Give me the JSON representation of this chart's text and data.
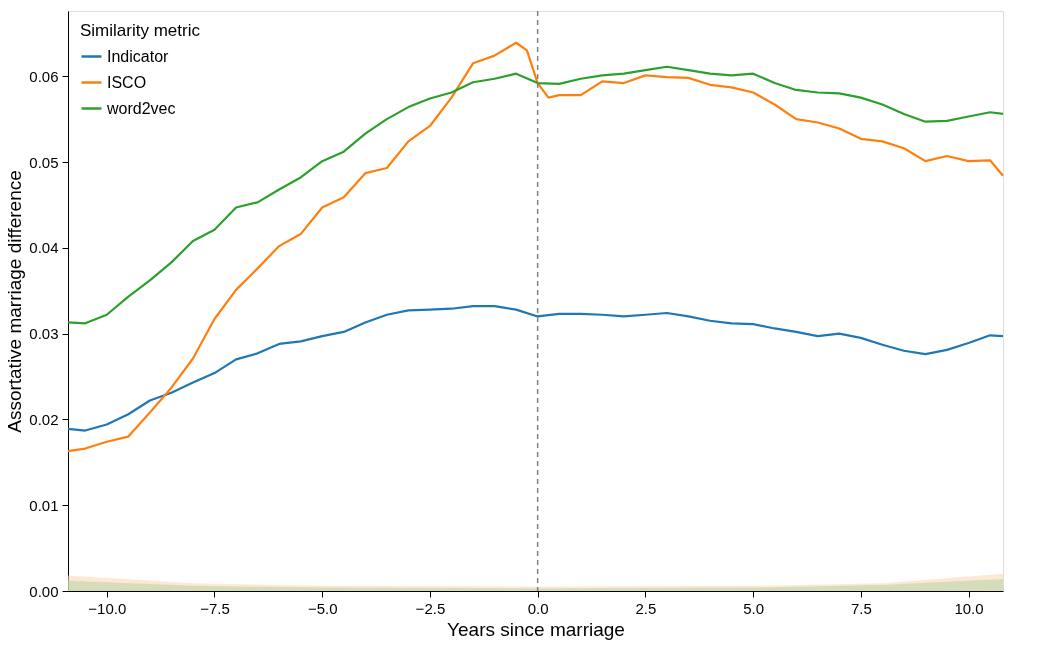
{
  "chart_data": {
    "type": "line",
    "xlabel": "Years since marriage",
    "ylabel": "Assortative marriage difference",
    "legend_title": "Similarity metric",
    "legend": "top left",
    "grid": false,
    "line_style": "solid",
    "marker": "none",
    "xlim": [
      -10.9,
      10.8
    ],
    "ylim": [
      0,
      0.0676
    ],
    "xticks": [
      {
        "value": -10,
        "label": "−10.0"
      },
      {
        "value": -7.5,
        "label": "−7.5"
      },
      {
        "value": -5,
        "label": "−5.0"
      },
      {
        "value": -2.5,
        "label": "−2.5"
      },
      {
        "value": 0,
        "label": "0.0"
      },
      {
        "value": 2.5,
        "label": "2.5"
      },
      {
        "value": 5,
        "label": "5.0"
      },
      {
        "value": 7.5,
        "label": "7.5"
      },
      {
        "value": 10,
        "label": "10.0"
      }
    ],
    "yticks": [
      {
        "value": 0,
        "label": "0.00"
      },
      {
        "value": 0.01,
        "label": "0.01"
      },
      {
        "value": 0.02,
        "label": "0.02"
      },
      {
        "value": 0.03,
        "label": "0.03"
      },
      {
        "value": 0.04,
        "label": "0.04"
      },
      {
        "value": 0.05,
        "label": "0.05"
      },
      {
        "value": 0.06,
        "label": "0.06"
      }
    ],
    "ref_lines": [
      {
        "axis": "x",
        "value": 0,
        "color": "#808080",
        "line_style": "dashed"
      }
    ],
    "series": [
      {
        "type": "area",
        "color": "#fdd9b5",
        "x": [
          -10.9,
          -8,
          -5,
          0,
          5,
          8,
          10.8
        ],
        "values": [
          0.0018,
          0.0009,
          0.0006,
          0.0005,
          0.0006,
          0.0009,
          0.002
        ]
      },
      {
        "type": "area",
        "color": "#b9d4a8",
        "x": [
          -10.9,
          -8,
          -5,
          0,
          5,
          8,
          10.8
        ],
        "values": [
          0.0012,
          0.0006,
          0.0004,
          0.0003,
          0.0004,
          0.0007,
          0.0014
        ]
      },
      {
        "name": "Indicator",
        "color": "#1f77b4",
        "x": [
          -10.9,
          -10.5,
          -10,
          -9.5,
          -9,
          -8.5,
          -8,
          -7.5,
          -7,
          -6.5,
          -6,
          -5.5,
          -5,
          -4.5,
          -4,
          -3.5,
          -3,
          -2.5,
          -2,
          -1.5,
          -1,
          -0.5,
          0,
          0.5,
          1,
          1.5,
          2,
          2.5,
          3,
          3.5,
          4,
          4.5,
          5,
          5.5,
          6,
          6.5,
          7,
          7.5,
          8,
          8.5,
          9,
          9.5,
          10,
          10.5,
          10.8
        ],
        "values": [
          0.0189,
          0.0187,
          0.0194,
          0.0206,
          0.0222,
          0.0231,
          0.0243,
          0.0254,
          0.027,
          0.0277,
          0.0288,
          0.0291,
          0.0297,
          0.0302,
          0.0313,
          0.0322,
          0.0327,
          0.0328,
          0.0329,
          0.0332,
          0.0332,
          0.0328,
          0.032,
          0.0323,
          0.0323,
          0.0322,
          0.032,
          0.0322,
          0.0324,
          0.032,
          0.0315,
          0.0312,
          0.0311,
          0.0306,
          0.0302,
          0.0297,
          0.03,
          0.0295,
          0.0287,
          0.028,
          0.0276,
          0.0281,
          0.0289,
          0.0298,
          0.0297
        ]
      },
      {
        "name": "ISCO",
        "color": "#ff7f0e",
        "x": [
          -10.9,
          -10.5,
          -10,
          -9.5,
          -9,
          -8.5,
          -8,
          -7.5,
          -7,
          -6.5,
          -6,
          -5.5,
          -5,
          -4.5,
          -4,
          -3.5,
          -3,
          -2.5,
          -2,
          -1.5,
          -1,
          -0.5,
          -0.25,
          0,
          0.25,
          0.5,
          1,
          1.5,
          2,
          2.5,
          3,
          3.5,
          4,
          4.5,
          5,
          5.5,
          6,
          6.5,
          7,
          7.5,
          8,
          8.5,
          9,
          9.5,
          10,
          10.5,
          10.8
        ],
        "values": [
          0.0163,
          0.0166,
          0.0174,
          0.018,
          0.0208,
          0.0237,
          0.0271,
          0.0317,
          0.0351,
          0.0376,
          0.0402,
          0.0416,
          0.0447,
          0.0459,
          0.0487,
          0.0493,
          0.0524,
          0.0542,
          0.0575,
          0.0615,
          0.0624,
          0.0639,
          0.063,
          0.0592,
          0.0575,
          0.0578,
          0.0578,
          0.0594,
          0.0592,
          0.0601,
          0.0599,
          0.0598,
          0.059,
          0.0587,
          0.0581,
          0.0567,
          0.055,
          0.0546,
          0.0539,
          0.0527,
          0.0524,
          0.0516,
          0.0501,
          0.0507,
          0.0501,
          0.0502,
          0.0484
        ]
      },
      {
        "name": "word2vec",
        "color": "#2ca02c",
        "x": [
          -10.9,
          -10.5,
          -10,
          -9.5,
          -9,
          -8.5,
          -8,
          -7.5,
          -7,
          -6.5,
          -6,
          -5.5,
          -5,
          -4.5,
          -4,
          -3.5,
          -3,
          -2.5,
          -2,
          -1.5,
          -1,
          -0.5,
          0,
          0.5,
          1,
          1.5,
          2,
          2.5,
          3,
          3.5,
          4,
          4.5,
          5,
          5.5,
          6,
          6.5,
          7,
          7.5,
          8,
          8.5,
          9,
          9.5,
          10,
          10.5,
          10.8
        ],
        "values": [
          0.0313,
          0.0312,
          0.0322,
          0.0343,
          0.0362,
          0.0383,
          0.0408,
          0.0421,
          0.0447,
          0.0453,
          0.0468,
          0.0482,
          0.0501,
          0.0512,
          0.0533,
          0.055,
          0.0564,
          0.0574,
          0.0581,
          0.0593,
          0.0597,
          0.0603,
          0.0592,
          0.0591,
          0.0597,
          0.0601,
          0.0603,
          0.0607,
          0.0611,
          0.0607,
          0.0603,
          0.0601,
          0.0603,
          0.0592,
          0.0584,
          0.0581,
          0.058,
          0.0575,
          0.0567,
          0.0556,
          0.0547,
          0.0548,
          0.0553,
          0.0558,
          0.0556
        ]
      }
    ]
  }
}
